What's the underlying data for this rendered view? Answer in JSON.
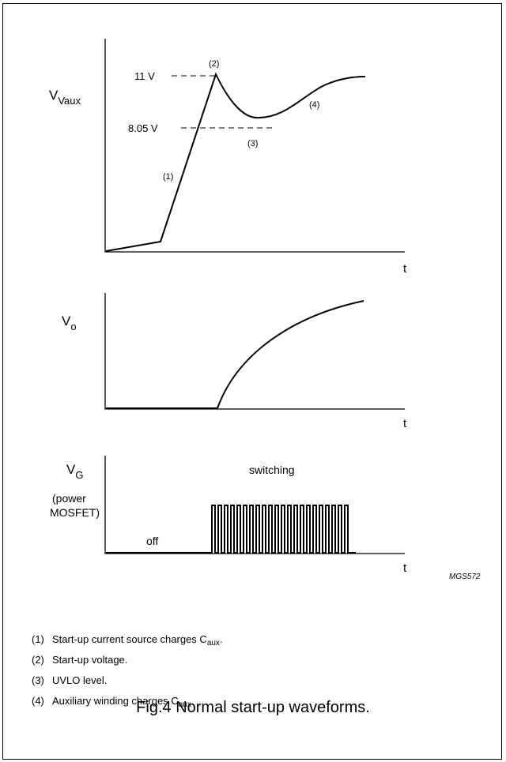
{
  "figure": {
    "caption": "Fig.4  Normal start-up waveforms.",
    "code": "MGS572"
  },
  "panel_vaux": {
    "ylabel_main": "V",
    "ylabel_sub": "Vaux",
    "xlabel": "t",
    "level_11v": "11 V",
    "level_805v": "8.05 V",
    "marker1": "(1)",
    "marker2": "(2)",
    "marker3": "(3)",
    "marker4": "(4)"
  },
  "panel_vo": {
    "ylabel_main": "V",
    "ylabel_sub": "o",
    "xlabel": "t"
  },
  "panel_vg": {
    "ylabel_main": "V",
    "ylabel_sub": "G",
    "ylabel_line2": "(power",
    "ylabel_line3": "MOSFET)",
    "state_off": "off",
    "state_switching": "switching",
    "xlabel": "t"
  },
  "notes": [
    {
      "num": "(1)",
      "text": "Start-up current source charges C",
      "sub": "aux",
      "tail": "."
    },
    {
      "num": "(2)",
      "text": "Start-up voltage.",
      "sub": "",
      "tail": ""
    },
    {
      "num": "(3)",
      "text": "UVLO level.",
      "sub": "",
      "tail": ""
    },
    {
      "num": "(4)",
      "text": "Auxiliary winding charges C",
      "sub": "aux",
      "tail": "."
    }
  ]
}
